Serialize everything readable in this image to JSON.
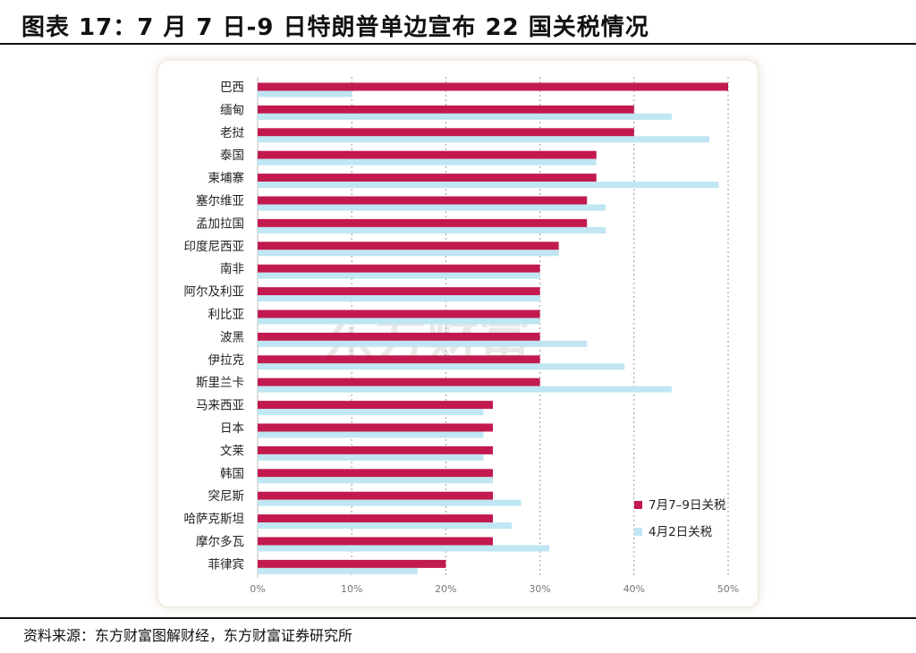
{
  "title": "图表 17：7 月 7 日-9 日特朗普单边宣布 22 国关税情况",
  "footer": "资料来源：东方财富图解财经，东方财富证券研究所",
  "watermark": "东方财富",
  "colors": {
    "july": "#c21a4f",
    "april": "#bfe6f2",
    "grid": "#9a9a9a"
  },
  "chart_data": {
    "type": "bar",
    "orientation": "horizontal",
    "categories": [
      "巴西",
      "缅甸",
      "老挝",
      "泰国",
      "柬埔寨",
      "塞尔维亚",
      "孟加拉国",
      "印度尼西亚",
      "南非",
      "阿尔及利亚",
      "利比亚",
      "波黑",
      "伊拉克",
      "斯里兰卡",
      "马来西亚",
      "日本",
      "文莱",
      "韩国",
      "突尼斯",
      "哈萨克斯坦",
      "摩尔多瓦",
      "菲律宾"
    ],
    "series": [
      {
        "name": "7月7–9日关税",
        "values": [
          50,
          40,
          40,
          36,
          36,
          35,
          35,
          32,
          30,
          30,
          30,
          30,
          30,
          30,
          25,
          25,
          25,
          25,
          25,
          25,
          25,
          20
        ]
      },
      {
        "name": "4月2日关税",
        "values": [
          10,
          44,
          48,
          36,
          49,
          37,
          37,
          32,
          30,
          30,
          30,
          35,
          39,
          44,
          24,
          24,
          24,
          25,
          28,
          27,
          31,
          17
        ]
      }
    ],
    "xticks": [
      "0%",
      "10%",
      "20%",
      "30%",
      "40%",
      "50%"
    ],
    "xlim": [
      0,
      50
    ],
    "grid": "vertical dashed",
    "legend": "bottom-right"
  }
}
